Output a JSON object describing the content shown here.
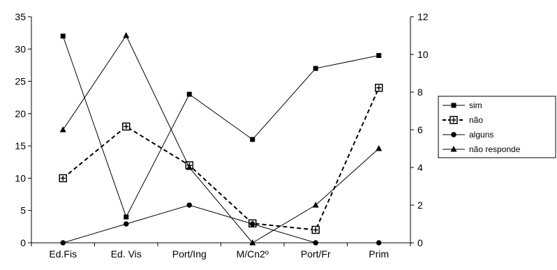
{
  "chart_data": {
    "type": "line",
    "categories": [
      "Ed.Fis",
      "Ed. Vis",
      "Port/Ing",
      "M/Cn2º",
      "Port/Fr",
      "Prim"
    ],
    "ylim_left": [
      0,
      35
    ],
    "yticks_left": [
      0,
      5,
      10,
      15,
      20,
      25,
      30,
      35
    ],
    "ylim_right": [
      0,
      12
    ],
    "yticks_right": [
      0,
      2,
      4,
      6,
      8,
      10,
      12
    ],
    "grid": false,
    "legend_position": "right",
    "series": [
      {
        "name": "sim",
        "axis": "left",
        "marker": "square",
        "dash": "solid",
        "values": [
          32,
          4,
          23,
          16,
          27,
          29
        ]
      },
      {
        "name": "não",
        "axis": "left",
        "marker": "square-plus",
        "dash": "dashed",
        "values": [
          10,
          18,
          12,
          3,
          2,
          24
        ]
      },
      {
        "name": "alguns",
        "axis": "right",
        "marker": "circle",
        "dash": "solid",
        "values": [
          0,
          1,
          2,
          1,
          0,
          0
        ]
      },
      {
        "name": "não responde",
        "axis": "right",
        "marker": "triangle",
        "dash": "solid",
        "values": [
          6,
          11,
          4,
          0,
          2,
          5
        ]
      }
    ]
  }
}
